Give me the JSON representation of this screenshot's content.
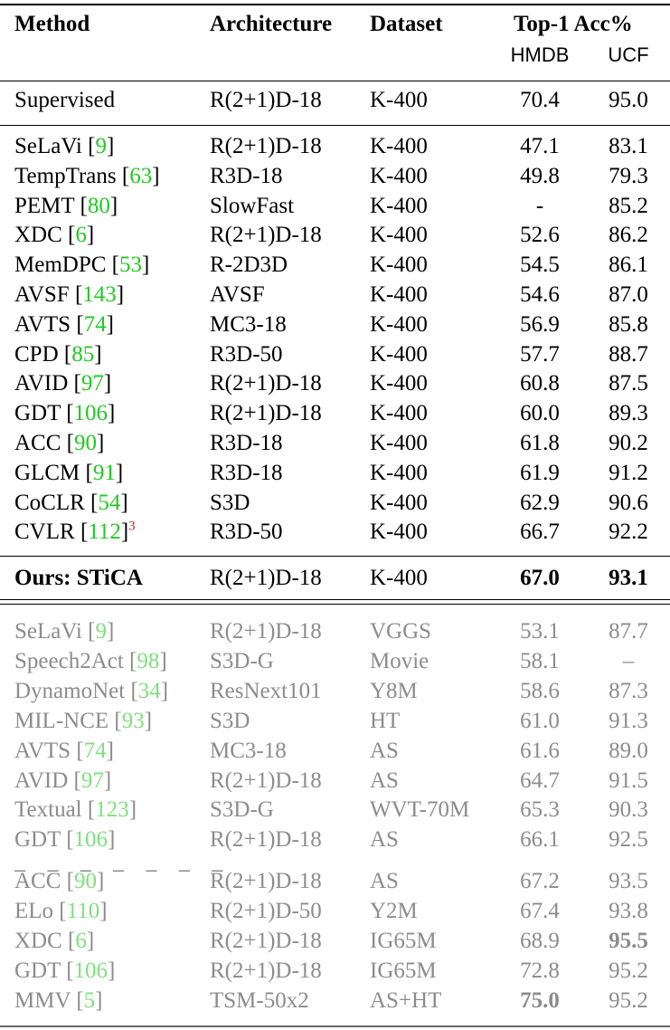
{
  "headers": {
    "method": "Method",
    "architecture": "Architecture",
    "dataset": "Dataset",
    "top1": "Top-1 Acc%",
    "hmdb": "HMDB",
    "ucf": "UCF"
  },
  "supervised": {
    "method": "Supervised",
    "arch": "R(2+1)D-18",
    "dataset": "K-400",
    "hmdb": "70.4",
    "ucf": "95.0"
  },
  "k400_rows": [
    {
      "name": "SeLaVi",
      "ref": "9",
      "arch": "R(2+1)D-18",
      "dataset": "K-400",
      "hmdb": "47.1",
      "ucf": "83.1"
    },
    {
      "name": "TempTrans",
      "ref": "63",
      "arch": "R3D-18",
      "dataset": "K-400",
      "hmdb": "49.8",
      "ucf": "79.3"
    },
    {
      "name": "PEMT",
      "ref": "80",
      "arch": "SlowFast",
      "dataset": "K-400",
      "hmdb": "-",
      "ucf": "85.2"
    },
    {
      "name": "XDC",
      "ref": "6",
      "arch": "R(2+1)D-18",
      "dataset": "K-400",
      "hmdb": "52.6",
      "ucf": "86.2"
    },
    {
      "name": "MemDPC",
      "ref": "53",
      "arch": "R-2D3D",
      "dataset": "K-400",
      "hmdb": "54.5",
      "ucf": "86.1"
    },
    {
      "name": "AVSF",
      "ref": "143",
      "arch": "AVSF",
      "dataset": "K-400",
      "hmdb": "54.6",
      "ucf": "87.0"
    },
    {
      "name": "AVTS",
      "ref": "74",
      "arch": "MC3-18",
      "dataset": "K-400",
      "hmdb": "56.9",
      "ucf": "85.8"
    },
    {
      "name": "CPD",
      "ref": "85",
      "arch": "R3D-50",
      "dataset": "K-400",
      "hmdb": "57.7",
      "ucf": "88.7"
    },
    {
      "name": "AVID",
      "ref": "97",
      "arch": "R(2+1)D-18",
      "dataset": "K-400",
      "hmdb": "60.8",
      "ucf": "87.5"
    },
    {
      "name": "GDT",
      "ref": "106",
      "arch": "R(2+1)D-18",
      "dataset": "K-400",
      "hmdb": "60.0",
      "ucf": "89.3"
    },
    {
      "name": "ACC",
      "ref": "90",
      "arch": "R3D-18",
      "dataset": "K-400",
      "hmdb": "61.8",
      "ucf": "90.2"
    },
    {
      "name": "GLCM",
      "ref": "91",
      "arch": "R3D-18",
      "dataset": "K-400",
      "hmdb": "61.9",
      "ucf": "91.2"
    },
    {
      "name": "CoCLR",
      "ref": "54",
      "arch": "S3D",
      "dataset": "K-400",
      "hmdb": "62.9",
      "ucf": "90.6"
    },
    {
      "name": "CVLR",
      "ref": "112",
      "footnote": "3",
      "arch": "R3D-50",
      "dataset": "K-400",
      "hmdb": "66.7",
      "ucf": "92.2"
    }
  ],
  "ours": {
    "method": "Ours: STiCA",
    "arch": "R(2+1)D-18",
    "dataset": "K-400",
    "hmdb": "67.0",
    "ucf": "93.1"
  },
  "large_rows": [
    {
      "name": "SeLaVi",
      "ref": "9",
      "arch": "R(2+1)D-18",
      "dataset": "VGGS",
      "hmdb": "53.1",
      "ucf": "87.7"
    },
    {
      "name": "Speech2Act",
      "ref": "98",
      "arch": "S3D-G",
      "dataset": "Movie",
      "hmdb": "58.1",
      "ucf": "–"
    },
    {
      "name": "DynamoNet",
      "ref": "34",
      "arch": "ResNext101",
      "dataset": "Y8M",
      "hmdb": "58.6",
      "ucf": "87.3"
    },
    {
      "name": "MIL-NCE",
      "ref": "93",
      "arch": "S3D",
      "dataset": "HT",
      "hmdb": "61.0",
      "ucf": "91.3"
    },
    {
      "name": "AVTS",
      "ref": "74",
      "arch": "MC3-18",
      "dataset": "AS",
      "hmdb": "61.6",
      "ucf": "89.0"
    },
    {
      "name": "AVID",
      "ref": "97",
      "arch": "R(2+1)D-18",
      "dataset": "AS",
      "hmdb": "64.7",
      "ucf": "91.5"
    },
    {
      "name": "Textual",
      "ref": "123",
      "arch": "S3D-G",
      "dataset": "WVT-70M",
      "hmdb": "65.3",
      "ucf": "90.3"
    },
    {
      "name": "GDT",
      "ref": "106",
      "arch": "R(2+1)D-18",
      "dataset": "AS",
      "hmdb": "66.1",
      "ucf": "92.5"
    },
    {
      "name": "ACC",
      "ref": "90",
      "arch": "R(2+1)D-18",
      "dataset": "AS",
      "hmdb": "67.2",
      "ucf": "93.5"
    },
    {
      "name": "ELo",
      "ref": "110",
      "arch": "R(2+1)D-50",
      "dataset": "Y2M",
      "hmdb": "67.4",
      "ucf": "93.8"
    },
    {
      "name": "XDC",
      "ref": "6",
      "arch": "R(2+1)D-18",
      "dataset": "IG65M",
      "hmdb": "68.9",
      "ucf": "95.5",
      "bold_ucf": true
    },
    {
      "name": "GDT",
      "ref": "106",
      "arch": "R(2+1)D-18",
      "dataset": "IG65M",
      "hmdb": "72.8",
      "ucf": "95.2"
    },
    {
      "name": "MMV",
      "ref": "5",
      "arch": "TSM-50x2",
      "dataset": "AS+HT",
      "hmdb": "75.0",
      "ucf": "95.2",
      "bold_hmdb": true
    }
  ],
  "separator": "– – – – – – –"
}
